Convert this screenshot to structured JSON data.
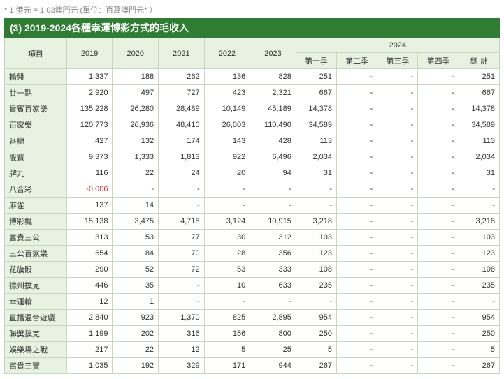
{
  "note": "* 1 港元 = 1.03澳門元 (單位：百萬澳門元* ）",
  "title": "(3) 2019-2024各種幸運博彩方式的毛收入",
  "headers": {
    "item": "項目",
    "years": [
      "2019",
      "2020",
      "2021",
      "2022",
      "2023"
    ],
    "group": "2024",
    "quarters": [
      "第一季",
      "第二季",
      "第三季",
      "第四季",
      "總 計"
    ]
  },
  "rows": [
    {
      "label": "輪盤",
      "y": [
        "1,337",
        "188",
        "262",
        "136",
        "828"
      ],
      "q": [
        "251",
        "-",
        "-",
        "-",
        "251"
      ]
    },
    {
      "label": "廿一點",
      "y": [
        "2,920",
        "497",
        "727",
        "423",
        "2,321"
      ],
      "q": [
        "667",
        "-",
        "-",
        "-",
        "667"
      ]
    },
    {
      "label": "貴賓百家樂",
      "y": [
        "135,228",
        "26,280",
        "28,489",
        "10,149",
        "45,189"
      ],
      "q": [
        "14,378",
        "-",
        "-",
        "-",
        "14,378"
      ]
    },
    {
      "label": "百家樂",
      "y": [
        "120,773",
        "26,936",
        "48,410",
        "26,003",
        "110,490"
      ],
      "q": [
        "34,589",
        "-",
        "-",
        "-",
        "34,589"
      ]
    },
    {
      "label": "番攤",
      "y": [
        "427",
        "132",
        "174",
        "143",
        "428"
      ],
      "q": [
        "113",
        "-",
        "-",
        "-",
        "113"
      ]
    },
    {
      "label": "骰寶",
      "y": [
        "9,373",
        "1,333",
        "1,813",
        "922",
        "6,496"
      ],
      "q": [
        "2,034",
        "-",
        "-",
        "-",
        "2,034"
      ]
    },
    {
      "label": "牌九",
      "y": [
        "116",
        "22",
        "24",
        "20",
        "94"
      ],
      "q": [
        "31",
        "-",
        "-",
        "-",
        "31"
      ]
    },
    {
      "label": "八合彩",
      "y": [
        "-0.006",
        "-",
        "-",
        "-",
        "-"
      ],
      "neg": [
        0
      ],
      "q": [
        "-",
        "-",
        "-",
        "-",
        "-"
      ]
    },
    {
      "label": "麻雀",
      "y": [
        "137",
        "14",
        "-",
        "-",
        "-"
      ],
      "q": [
        "-",
        "-",
        "-",
        "-",
        "-"
      ]
    },
    {
      "label": "博彩機",
      "y": [
        "15,138",
        "3,475",
        "4,718",
        "3,124",
        "10,915"
      ],
      "q": [
        "3,218",
        "-",
        "-",
        "-",
        "3,218"
      ]
    },
    {
      "label": "富貴三公",
      "y": [
        "313",
        "53",
        "77",
        "30",
        "312"
      ],
      "q": [
        "103",
        "-",
        "-",
        "-",
        "103"
      ]
    },
    {
      "label": "三公百家樂",
      "y": [
        "654",
        "84",
        "70",
        "28",
        "356"
      ],
      "q": [
        "123",
        "-",
        "-",
        "-",
        "123"
      ]
    },
    {
      "label": "花旗骰",
      "y": [
        "290",
        "52",
        "72",
        "53",
        "333"
      ],
      "q": [
        "108",
        "-",
        "-",
        "-",
        "108"
      ]
    },
    {
      "label": "德州撲克",
      "y": [
        "446",
        "35",
        "-",
        "10",
        "633"
      ],
      "q": [
        "235",
        "-",
        "-",
        "-",
        "235"
      ]
    },
    {
      "label": "幸運輪",
      "y": [
        "12",
        "1",
        "-",
        "-",
        "-"
      ],
      "q": [
        "-",
        "-",
        "-",
        "-",
        "-"
      ]
    },
    {
      "label": "直播混合遊戲",
      "y": [
        "2,840",
        "923",
        "1,370",
        "825",
        "2,895"
      ],
      "q": [
        "954",
        "-",
        "-",
        "-",
        "954"
      ]
    },
    {
      "label": "聯獎撲克",
      "y": [
        "1,199",
        "202",
        "316",
        "156",
        "800"
      ],
      "q": [
        "250",
        "-",
        "-",
        "-",
        "250"
      ]
    },
    {
      "label": "娛樂場之戰",
      "y": [
        "217",
        "22",
        "12",
        "5",
        "25"
      ],
      "q": [
        "5",
        "-",
        "-",
        "-",
        "5"
      ]
    },
    {
      "label": "富貴三寶",
      "y": [
        "1,035",
        "192",
        "329",
        "171",
        "944"
      ],
      "q": [
        "267",
        "-",
        "-",
        "-",
        "267"
      ]
    }
  ]
}
